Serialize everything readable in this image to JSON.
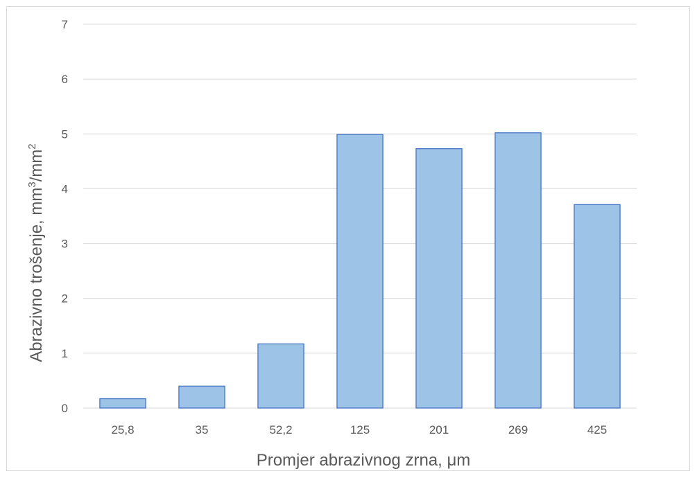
{
  "chart_data": {
    "type": "bar",
    "categories": [
      "25,8",
      "35",
      "52,2",
      "125",
      "201",
      "269",
      "425"
    ],
    "values": [
      0.17,
      0.4,
      1.17,
      4.99,
      4.73,
      5.02,
      3.71
    ],
    "xlabel": "Promjer abrazivnog zrna, μm",
    "ylabel_parts": [
      "Abrazivno trošenje, mm",
      "3",
      "/mm",
      "2"
    ],
    "ylim": [
      0,
      7
    ],
    "yticks": [
      "0",
      "1",
      "2",
      "3",
      "4",
      "5",
      "6",
      "7"
    ],
    "grid": true,
    "bar_fill": "#9dc3e6",
    "bar_stroke": "#4472c4",
    "grid_color": "#d9d9d9"
  }
}
